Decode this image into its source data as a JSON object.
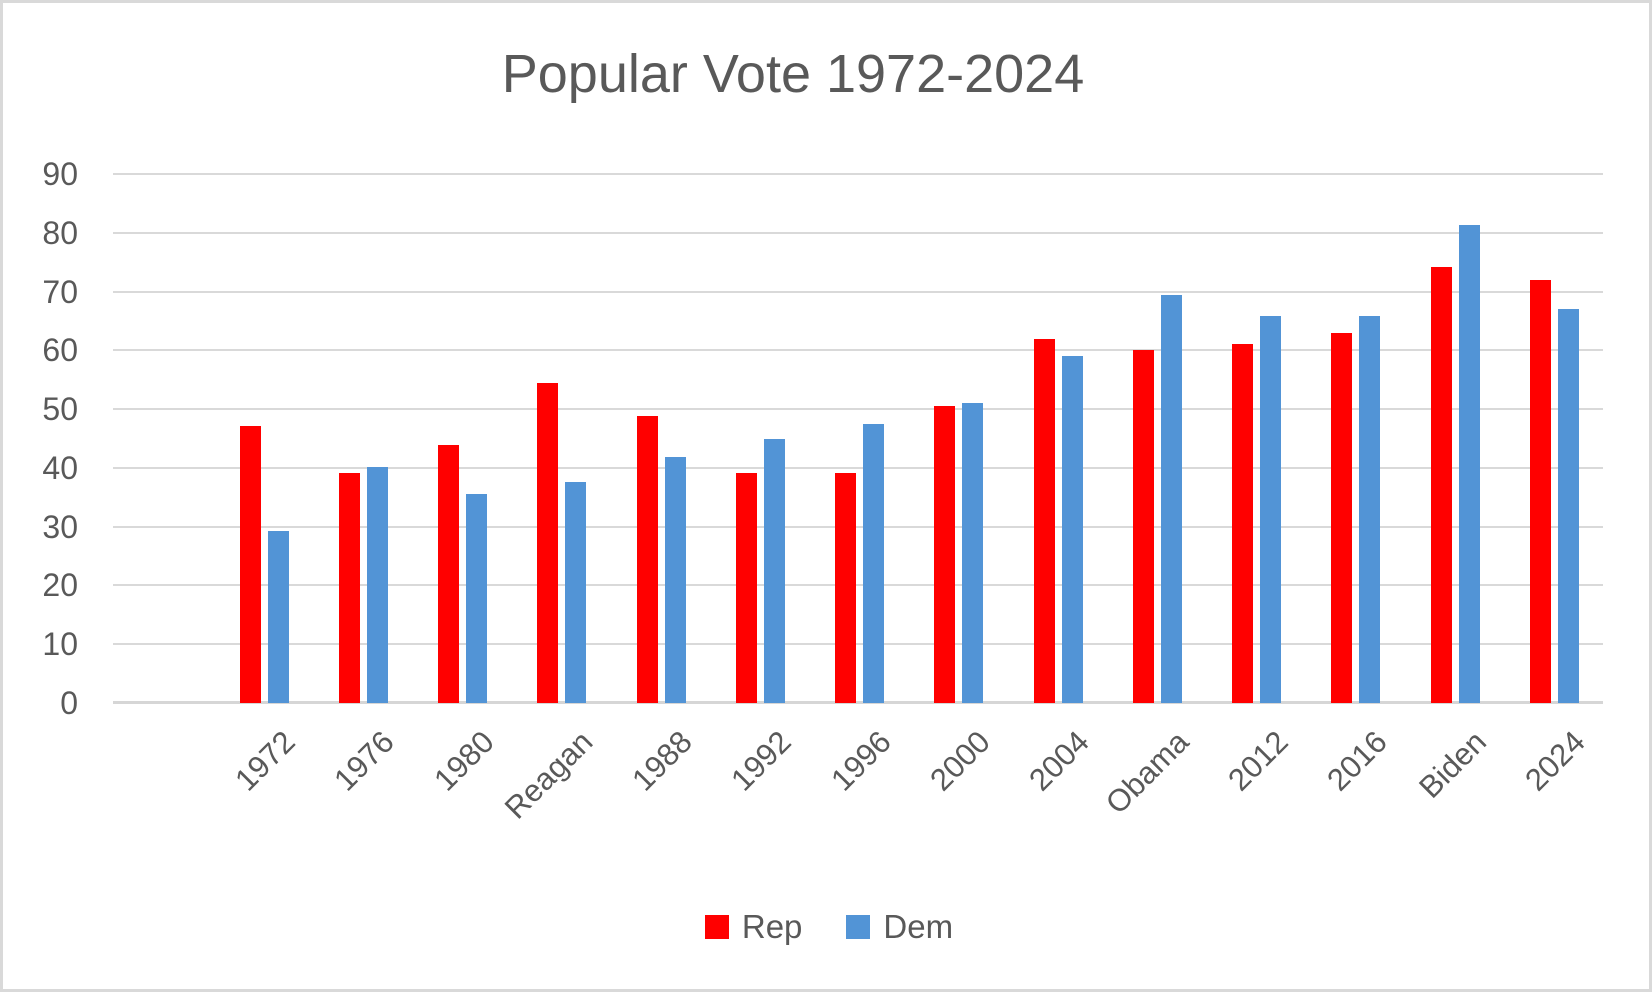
{
  "chart_data": {
    "type": "bar",
    "title": "Popular Vote 1972-2024",
    "categories": [
      "1972",
      "1976",
      "1980",
      "Reagan",
      "1988",
      "1992",
      "1996",
      "2000",
      "2004",
      "Obama",
      "2012",
      "2016",
      "Biden",
      "2024"
    ],
    "series": [
      {
        "name": "Rep",
        "color": "#ff0000",
        "values": [
          47.2,
          39.1,
          43.9,
          54.5,
          48.9,
          39.1,
          39.2,
          50.5,
          62.0,
          60.0,
          61.0,
          63.0,
          74.2,
          71.9
        ]
      },
      {
        "name": "Dem",
        "color": "#5294d6",
        "values": [
          29.2,
          40.1,
          35.5,
          37.6,
          41.8,
          44.9,
          47.4,
          51.0,
          59.0,
          69.5,
          65.9,
          65.8,
          81.3,
          67.1
        ]
      }
    ],
    "xlabel": "",
    "ylabel": "",
    "ylim": [
      0,
      90
    ],
    "yticks": [
      0,
      10,
      20,
      30,
      40,
      50,
      60,
      70,
      80,
      90
    ],
    "grid": true,
    "grid_color": "#d9d9d9",
    "text_color": "#595959",
    "background_color": "#ffffff",
    "legend_position": "bottom",
    "x_label_rotation_deg": 45
  }
}
